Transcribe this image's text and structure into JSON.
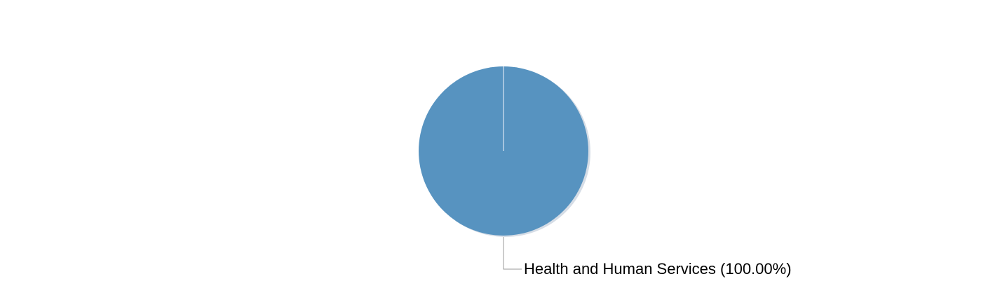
{
  "chart_data": {
    "type": "pie",
    "title": "",
    "slices": [
      {
        "label": "Health and Human Services",
        "value": 100.0,
        "percent_text": "(100.00%)",
        "display_text": "Health and Human Services (100.00%)",
        "color": "#5793c0"
      }
    ],
    "legend": "none",
    "labels": "outside-with-leader-lines"
  },
  "colors": {
    "slice_fill": "#5793c0",
    "shadow": "#d6dde6",
    "seam": "#d9e6f2",
    "leader_line": "#999999",
    "background": "#ffffff"
  }
}
